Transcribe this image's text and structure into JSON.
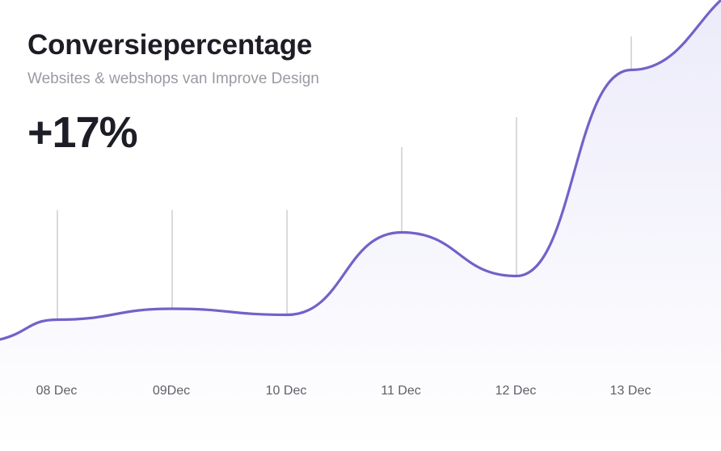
{
  "header": {
    "title": "Conversiepercentage",
    "subtitle": "Websites & webshops van Improve Design",
    "kpi": "+17%"
  },
  "chart_data": {
    "type": "area",
    "title": "Conversiepercentage",
    "subtitle": "Websites & webshops van Improve Design",
    "categories": [
      "08 Dec",
      "09Dec",
      "10 Dec",
      "11 Dec",
      "12 Dec",
      "13 Dec"
    ],
    "values": [
      32,
      41,
      36,
      104,
      68,
      238
    ],
    "series": [
      {
        "values": [
          32,
          41,
          36,
          104,
          68,
          238
        ]
      }
    ],
    "ylim": [
      0,
      300
    ],
    "grid": "vertical",
    "colors": {
      "line": "#7361c9",
      "area_top": "#ecebfa",
      "area_bottom": "#ffffff",
      "gridline": "#d9d9de",
      "tick_label": "#5f5f68"
    }
  }
}
